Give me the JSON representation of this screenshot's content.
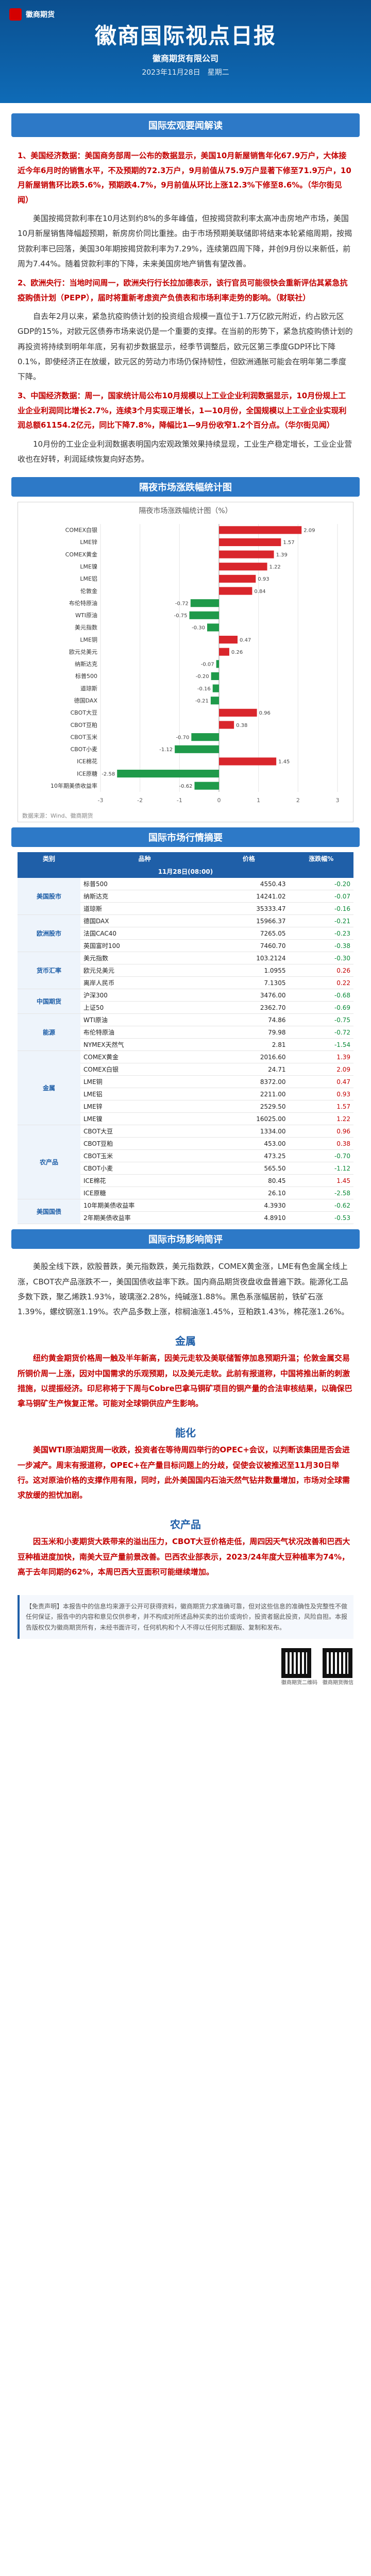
{
  "header": {
    "brand": "徽商期货",
    "title": "徽商国际视点日报",
    "company": "徽商期货有限公司",
    "date": "2023年11月28日　星期二"
  },
  "sections": {
    "macro_title": "国际宏观要闻解读",
    "macro_items": [
      {
        "headline": "1、美国经济数据：美国商务部周一公布的数据显示，美国10月新屋销售年化67.9万户，大体接近今年6月时的销售水平，不及预期的72.3万户，9月前值从75.9万户显著下修至71.9万户，10月新屋销售环比跌5.6%，预期跌4.7%，9月前值从环比上涨12.3%下修至8.6%。（华尔街见闻）",
        "para": "美国按揭贷款利率在10月达到约8%的多年峰值，但按揭贷款利率太高冲击房地产市场，美国10月新屋销售降幅超预期，新房房价同比重挫。由于市场预期美联储即将结束本轮紧缩周期，按揭贷款利率已回落，美国30年期按揭贷款利率为7.29%，连续第四周下降，并创9月份以来新低，前周为7.44%。随着贷款利率的下降，未来美国房地产销售有望改善。"
      },
      {
        "headline": "2、欧洲央行：当地时间周一，欧洲央行行长拉加德表示，该行官员可能很快会重新评估其紧急抗疫购债计划（PEPP），届时将重新考虑资产负债表和市场利率走势的影响。（财联社）",
        "para": "自去年2月以来，紧急抗疫购债计划的投资组合规模一直位于1.7万亿欧元附近，约占欧元区GDP的15%，对欧元区债券市场来说仍是一个重要的支撑。在当前的形势下，紧急抗疫购债计划的再投资将持续到明年年底，另有初步数据显示，经季节调整后，欧元区第三季度GDP环比下降0.1%，即使经济正在放缓，欧元区的劳动力市场仍保持韧性，但欧洲通胀可能会在明年第二季度下降。"
      },
      {
        "headline": "3、中国经济数据：周一，国家统计局公布10月规模以上工业企业利润数据显示，10月份规上工业企业利润同比增长2.7%，连续3个月实现正增长，1—10月份，全国规模以上工业企业实现利润总额61154.2亿元，同比下降7.8%，降幅比1—9月份收窄1.2个百分点。（华尔街见闻）",
        "para": "10月份的工业企业利润数据表明国内宏观政策效果持续显现，工业生产稳定增长，工业企业营收也在好转，利润延续恢复向好态势。"
      }
    ],
    "chart_title": "隔夜市场涨跌幅统计图",
    "market_title": "国际市场行情摘要",
    "impact_title": "国际市场影响简评"
  },
  "chart_data": {
    "type": "bar",
    "orientation": "horizontal",
    "title": "隔夜市场涨跌幅统计图（%）",
    "categories": [
      "COMEX白银",
      "LME锌",
      "COMEX黄金",
      "LME镍",
      "LME铝",
      "伦敦金",
      "布伦特原油",
      "WTI原油",
      "美元指数",
      "LME铜",
      "欧元兑美元",
      "纳斯达克",
      "标普500",
      "道琼斯",
      "德国DAX",
      "CBOT大豆",
      "CBOT豆粕",
      "CBOT玉米",
      "CBOT小麦",
      "ICE棉花",
      "ICE原糖",
      "10年期美债收益率"
    ],
    "values": [
      2.09,
      1.57,
      1.39,
      1.22,
      0.93,
      0.84,
      -0.72,
      -0.75,
      -0.3,
      0.47,
      0.26,
      -0.07,
      -0.2,
      -0.16,
      -0.21,
      0.96,
      0.38,
      -0.7,
      -1.12,
      1.45,
      -2.58,
      -0.62
    ],
    "xlim": [
      -3,
      3
    ],
    "source": "数据来源：Wind、徽商期货"
  },
  "market_table": {
    "date_label": "11月28日(08:00)",
    "headers": [
      "类别",
      "品种",
      "价格",
      "涨跌幅%"
    ],
    "groups": [
      {
        "name": "美国股市",
        "rows": [
          [
            "标普500",
            "4550.43",
            "-0.20"
          ],
          [
            "纳斯达克",
            "14241.02",
            "-0.07"
          ],
          [
            "道琼斯",
            "35333.47",
            "-0.16"
          ]
        ]
      },
      {
        "name": "欧洲股市",
        "rows": [
          [
            "德国DAX",
            "15966.37",
            "-0.21"
          ],
          [
            "法国CAC40",
            "7265.05",
            "-0.23"
          ],
          [
            "英国富时100",
            "7460.70",
            "-0.38"
          ]
        ]
      },
      {
        "name": "货币汇率",
        "rows": [
          [
            "美元指数",
            "103.2124",
            "-0.30"
          ],
          [
            "欧元兑美元",
            "1.0955",
            "0.26"
          ],
          [
            "离岸人民币",
            "7.1305",
            "0.22"
          ]
        ]
      },
      {
        "name": "中国期货",
        "rows": [
          [
            "沪深300",
            "3476.00",
            "-0.68"
          ],
          [
            "上证50",
            "2362.70",
            "-0.69"
          ]
        ]
      },
      {
        "name": "能源",
        "rows": [
          [
            "WTI原油",
            "74.86",
            "-0.75"
          ],
          [
            "布伦特原油",
            "79.98",
            "-0.72"
          ],
          [
            "NYMEX天然气",
            "2.81",
            "-1.54"
          ]
        ]
      },
      {
        "name": "金属",
        "rows": [
          [
            "COMEX黄金",
            "2016.60",
            "1.39"
          ],
          [
            "COMEX白银",
            "24.71",
            "2.09"
          ],
          [
            "LME铜",
            "8372.00",
            "0.47"
          ],
          [
            "LME铝",
            "2211.00",
            "0.93"
          ],
          [
            "LME锌",
            "2529.50",
            "1.57"
          ],
          [
            "LME镍",
            "16025.00",
            "1.22"
          ]
        ]
      },
      {
        "name": "农产品",
        "rows": [
          [
            "CBOT大豆",
            "1334.00",
            "0.96"
          ],
          [
            "CBOT豆粕",
            "453.00",
            "0.38"
          ],
          [
            "CBOT玉米",
            "473.25",
            "-0.70"
          ],
          [
            "CBOT小麦",
            "565.50",
            "-1.12"
          ],
          [
            "ICE棉花",
            "80.45",
            "1.45"
          ],
          [
            "ICE原糖",
            "26.10",
            "-2.58"
          ]
        ]
      },
      {
        "name": "美国国债",
        "rows": [
          [
            "10年期美债收益率",
            "4.3930",
            "-0.62"
          ],
          [
            "2年期美债收益率",
            "4.8910",
            "-0.53"
          ]
        ]
      }
    ]
  },
  "impact": {
    "general": "美股全线下跌，欧股普跌，美元指数跌，美元指数跌，COMEX黄金涨，LME有色金属全线上涨，CBOT农产品涨跌不一，美国国债收益率下跌。国内商品期货夜盘收盘普遍下跌。能源化工品多数下跌，聚乙烯跌1.93%，玻璃涨2.28%，纯碱涨1.88%。黑色系涨幅居前，铁矿石涨1.39%，螺纹钢涨1.19%。农产品多数上涨，棕榈油涨1.45%，豆粕跌1.43%，棉花涨1.26%。",
    "metal_title": "金属",
    "metal": "纽约黄金期货价格周一触及半年新高，因美元走软及美联储暂停加息预期升温；伦敦金属交易所铜价周一上涨，因对中国需求的乐观预期，以及美元走软。此前有报道称，中国将推出新的刺激措施，以提振经济。印尼称将于下周与Cobre巴拿马铜矿项目的铜产量的合法审核结果，以确保巴拿马铜矿生产恢复正常。可能对全球铜供应产生影响。",
    "energy_title": "能化",
    "energy": "美国WTI原油期货周一收跌，投资者在等待周四举行的OPEC+会议，以判断该集团是否会进一步减产。周末有报道称，OPEC+在产量目标问题上的分歧，促使会议被推迟至11月30日举行。这对原油价格的支撑作用有限，同时，此外美国国内石油天然气钻井数量增加，市场对全球需求放缓的担忧加剧。",
    "agri_title": "农产品",
    "agri": "因玉米和小麦期货大跌带来的溢出压力，CBOT大豆价格走低，周四因天气状况改善和巴西大豆种植进度加快，南美大豆产量前景改善。巴西农业部表示，2023/24年度大豆种植率为74%，高于去年同期的62%，本周巴西大豆面积可能继续增加。"
  },
  "disclaimer": "【免责声明】本报告中的信息均来源于公开可获得资料，徽商期货力求准确可靠，但对这些信息的准确性及完整性不做任何保证，报告中的内容和意见仅供参考，并不构成对所述品种买卖的出价或询价，投资者据此投资，风险自担。本报告版权仅为徽商期货所有，未经书面许可，任何机构和个人不得以任何形式翻版、复制和发布。",
  "qr_labels": [
    "徽商期货二维码",
    "徽商期货微信"
  ]
}
